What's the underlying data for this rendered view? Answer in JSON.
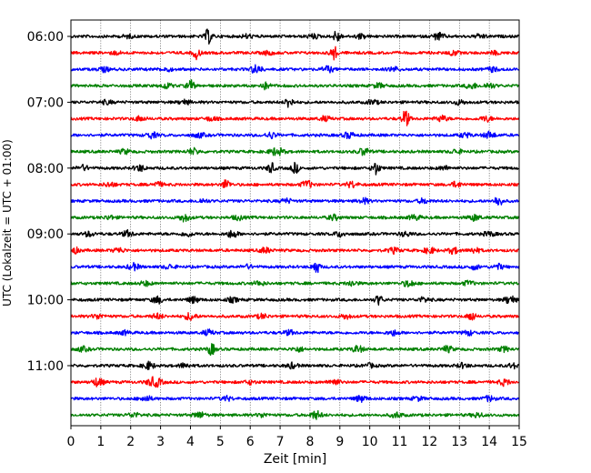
{
  "chart_data": {
    "type": "line",
    "xlabel": "Zeit  [min]",
    "ylabel": "UTC (Lokalzeit = UTC + 01:00)",
    "xlim": [
      0,
      15
    ],
    "x_ticks": [
      "0",
      "1",
      "2",
      "3",
      "4",
      "5",
      "6",
      "7",
      "8",
      "9",
      "10",
      "11",
      "12",
      "13",
      "14",
      "15"
    ],
    "y_ticks": [
      "06:00",
      "07:00",
      "08:00",
      "09:00",
      "10:00",
      "11:00"
    ],
    "grid_x": true,
    "trace_minutes_per_line": 15,
    "trace_colors": [
      "#000000",
      "#ff0000",
      "#0000ff",
      "#008000"
    ],
    "traces": [
      {
        "start": "06:00",
        "color": "#000000",
        "events": [
          [
            4.6,
            1.0
          ],
          [
            8.9,
            0.8
          ],
          [
            8.1,
            0.3
          ],
          [
            12.3,
            0.5
          ],
          [
            1.9,
            0.2
          ],
          [
            5.9,
            0.25
          ],
          [
            9.7,
            0.3
          ],
          [
            13.7,
            0.25
          ]
        ]
      },
      {
        "start": "06:15",
        "color": "#ff0000",
        "events": [
          [
            4.2,
            0.8
          ],
          [
            8.8,
            0.9
          ],
          [
            1.5,
            0.2
          ],
          [
            6.6,
            0.25
          ],
          [
            12.8,
            0.3
          ],
          [
            14.2,
            0.2
          ]
        ]
      },
      {
        "start": "06:30",
        "color": "#0000ff",
        "events": [
          [
            6.2,
            0.6
          ],
          [
            8.6,
            0.4
          ],
          [
            1.1,
            0.3
          ],
          [
            3.2,
            0.25
          ],
          [
            10.8,
            0.3
          ],
          [
            14.1,
            0.3
          ]
        ]
      },
      {
        "start": "06:45",
        "color": "#008000",
        "events": [
          [
            4.0,
            0.8
          ],
          [
            3.2,
            0.35
          ],
          [
            6.5,
            0.4
          ],
          [
            13.4,
            0.4
          ],
          [
            14.0,
            0.35
          ],
          [
            10.3,
            0.3
          ]
        ]
      },
      {
        "start": "07:00",
        "color": "#000000",
        "events": [
          [
            7.3,
            0.8
          ],
          [
            3.8,
            0.3
          ],
          [
            1.2,
            0.25
          ],
          [
            10.1,
            0.3
          ],
          [
            13.0,
            0.3
          ]
        ]
      },
      {
        "start": "07:15",
        "color": "#ff0000",
        "events": [
          [
            11.2,
            1.2
          ],
          [
            12.4,
            0.4
          ],
          [
            2.3,
            0.3
          ],
          [
            4.7,
            0.25
          ],
          [
            8.5,
            0.3
          ],
          [
            13.9,
            0.35
          ]
        ]
      },
      {
        "start": "07:30",
        "color": "#0000ff",
        "events": [
          [
            2.7,
            0.4
          ],
          [
            6.7,
            0.4
          ],
          [
            9.3,
            0.4
          ],
          [
            13.2,
            0.3
          ],
          [
            14.0,
            0.45
          ],
          [
            4.3,
            0.3
          ]
        ]
      },
      {
        "start": "07:45",
        "color": "#008000",
        "events": [
          [
            9.8,
            0.5
          ],
          [
            7.0,
            0.3
          ],
          [
            4.1,
            0.4
          ],
          [
            6.8,
            0.35
          ],
          [
            1.8,
            0.3
          ],
          [
            12.9,
            0.3
          ]
        ]
      },
      {
        "start": "08:00",
        "color": "#000000",
        "events": [
          [
            6.7,
            0.7
          ],
          [
            7.5,
            0.7
          ],
          [
            10.2,
            0.9
          ],
          [
            2.3,
            0.4
          ],
          [
            0.4,
            0.35
          ],
          [
            12.5,
            0.25
          ]
        ]
      },
      {
        "start": "08:15",
        "color": "#ff0000",
        "events": [
          [
            5.2,
            0.7
          ],
          [
            7.9,
            0.5
          ],
          [
            9.4,
            0.4
          ],
          [
            12.9,
            0.35
          ],
          [
            2.9,
            0.3
          ],
          [
            1.3,
            0.3
          ]
        ]
      },
      {
        "start": "08:30",
        "color": "#0000ff",
        "events": [
          [
            14.3,
            0.8
          ],
          [
            9.8,
            0.35
          ],
          [
            11.8,
            0.3
          ],
          [
            4.4,
            0.25
          ],
          [
            7.2,
            0.3
          ]
        ]
      },
      {
        "start": "08:45",
        "color": "#008000",
        "events": [
          [
            3.8,
            0.5
          ],
          [
            8.8,
            0.35
          ],
          [
            11.5,
            0.35
          ],
          [
            13.5,
            0.4
          ],
          [
            1.3,
            0.25
          ],
          [
            5.6,
            0.3
          ]
        ]
      },
      {
        "start": "09:00",
        "color": "#000000",
        "events": [
          [
            5.4,
            0.5
          ],
          [
            1.9,
            0.4
          ],
          [
            3.9,
            0.3
          ],
          [
            9.0,
            0.35
          ],
          [
            11.2,
            0.3
          ],
          [
            14.0,
            0.3
          ],
          [
            0.6,
            0.3
          ]
        ]
      },
      {
        "start": "09:15",
        "color": "#ff0000",
        "events": [
          [
            0.1,
            0.4
          ],
          [
            1.6,
            0.35
          ],
          [
            6.5,
            0.35
          ],
          [
            10.8,
            0.35
          ],
          [
            12.0,
            0.4
          ],
          [
            12.8,
            0.4
          ],
          [
            13.5,
            0.35
          ]
        ]
      },
      {
        "start": "09:30",
        "color": "#0000ff",
        "events": [
          [
            8.2,
            0.9
          ],
          [
            2.1,
            0.45
          ],
          [
            3.3,
            0.3
          ],
          [
            13.5,
            0.3
          ],
          [
            14.3,
            0.35
          ],
          [
            5.9,
            0.25
          ]
        ]
      },
      {
        "start": "09:45",
        "color": "#008000",
        "events": [
          [
            11.3,
            0.45
          ],
          [
            9.4,
            0.35
          ],
          [
            2.5,
            0.3
          ],
          [
            6.3,
            0.3
          ],
          [
            13.3,
            0.3
          ]
        ]
      },
      {
        "start": "10:00",
        "color": "#000000",
        "events": [
          [
            2.9,
            0.45
          ],
          [
            4.1,
            0.4
          ],
          [
            10.3,
            0.65
          ],
          [
            14.7,
            0.55
          ],
          [
            5.4,
            0.3
          ],
          [
            11.8,
            0.3
          ]
        ]
      },
      {
        "start": "10:15",
        "color": "#ff0000",
        "events": [
          [
            13.4,
            0.65
          ],
          [
            4.0,
            0.5
          ],
          [
            2.9,
            0.35
          ],
          [
            0.9,
            0.3
          ],
          [
            6.4,
            0.3
          ],
          [
            9.2,
            0.3
          ]
        ]
      },
      {
        "start": "10:30",
        "color": "#0000ff",
        "events": [
          [
            4.6,
            0.35
          ],
          [
            10.8,
            0.35
          ],
          [
            13.3,
            0.3
          ],
          [
            7.3,
            0.3
          ],
          [
            1.8,
            0.25
          ]
        ]
      },
      {
        "start": "10:45",
        "color": "#008000",
        "events": [
          [
            4.7,
            0.8
          ],
          [
            9.6,
            0.45
          ],
          [
            12.6,
            0.4
          ],
          [
            0.4,
            0.3
          ],
          [
            7.6,
            0.3
          ],
          [
            14.5,
            0.3
          ]
        ]
      },
      {
        "start": "11:00",
        "color": "#000000",
        "events": [
          [
            2.6,
            0.5
          ],
          [
            3.8,
            0.3
          ],
          [
            7.4,
            0.35
          ],
          [
            13.1,
            0.3
          ],
          [
            14.8,
            0.3
          ],
          [
            10.0,
            0.25
          ]
        ]
      },
      {
        "start": "11:15",
        "color": "#ff0000",
        "events": [
          [
            0.9,
            0.55
          ],
          [
            2.7,
            0.45
          ],
          [
            2.9,
            0.4
          ],
          [
            8.8,
            0.45
          ],
          [
            14.5,
            0.4
          ],
          [
            6.0,
            0.25
          ]
        ]
      },
      {
        "start": "11:30",
        "color": "#0000ff",
        "events": [
          [
            2.5,
            0.4
          ],
          [
            9.7,
            0.4
          ],
          [
            14.0,
            0.35
          ],
          [
            5.2,
            0.3
          ],
          [
            11.6,
            0.25
          ]
        ]
      },
      {
        "start": "11:45",
        "color": "#008000",
        "events": [
          [
            8.2,
            0.55
          ],
          [
            4.3,
            0.4
          ],
          [
            2.1,
            0.3
          ],
          [
            10.9,
            0.35
          ],
          [
            13.6,
            0.3
          ],
          [
            6.4,
            0.25
          ]
        ]
      }
    ]
  }
}
